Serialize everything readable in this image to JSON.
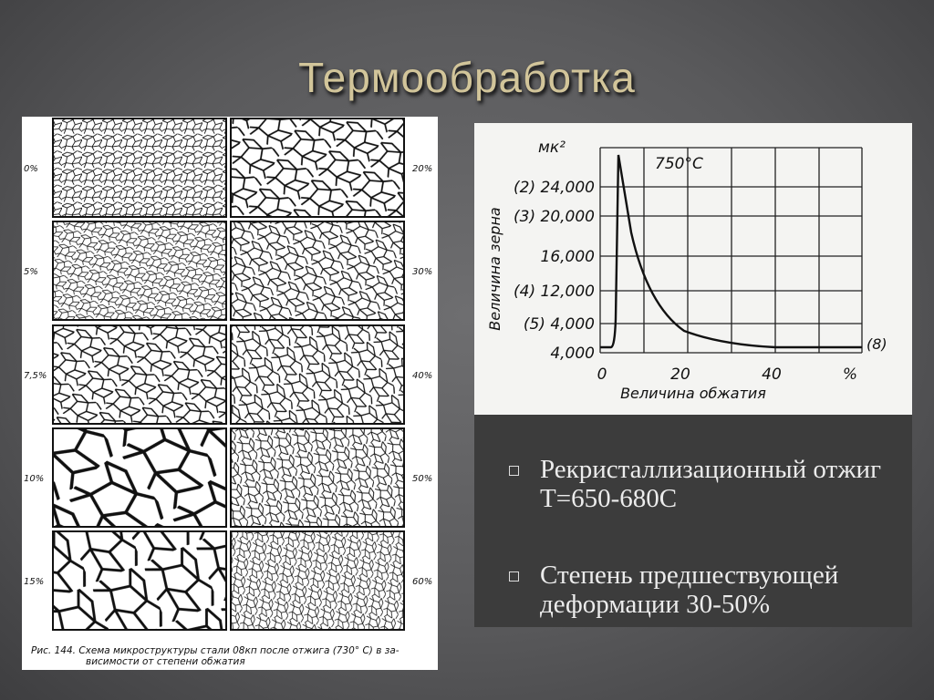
{
  "slide": {
    "title": "Термообработка",
    "micro_figure": {
      "left_labels": [
        "0%",
        "5%",
        "7,5%",
        "10%",
        "15%"
      ],
      "right_labels": [
        "20%",
        "30%",
        "40%",
        "50%",
        "60%"
      ],
      "caption": [
        "Рис. 144. Схема микроструктуры стали 08кп после отжига (730° С) в за-",
        "висимости от степени обжатия"
      ]
    },
    "grain_figure": {
      "unit": "мк²",
      "temperature": "750°C",
      "curve_label": "(8)",
      "y_labels": [
        "(2) 24,000",
        "(3) 20,000",
        "16,000",
        "(4) 12,000",
        "(5) 4,000",
        "4,000"
      ],
      "x_labels": [
        "0",
        "20",
        "40",
        "%"
      ],
      "x_title": "Величина обжатия",
      "y_title": "Величина зерна"
    },
    "bullets": [
      "Рекристаллизационный отжиг  Т=650-680С",
      "Степень предшествующей деформации 30-50%"
    ]
  }
}
